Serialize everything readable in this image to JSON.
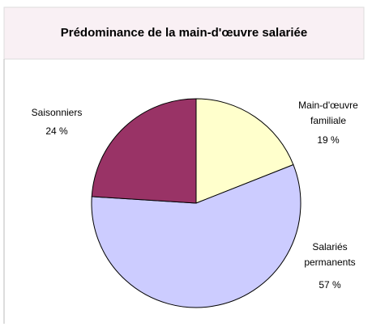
{
  "chart_data": {
    "type": "pie",
    "title": "Prédominance de la main-d'œuvre salariée",
    "categories": [
      "Main-d'œuvre familiale",
      "Salariés permanents",
      "Saisonniers"
    ],
    "values": [
      19,
      57,
      24
    ],
    "value_labels": [
      "19 %",
      "57 %",
      "24 %"
    ],
    "colors": [
      "#ffffcc",
      "#ccccff",
      "#993366"
    ]
  }
}
